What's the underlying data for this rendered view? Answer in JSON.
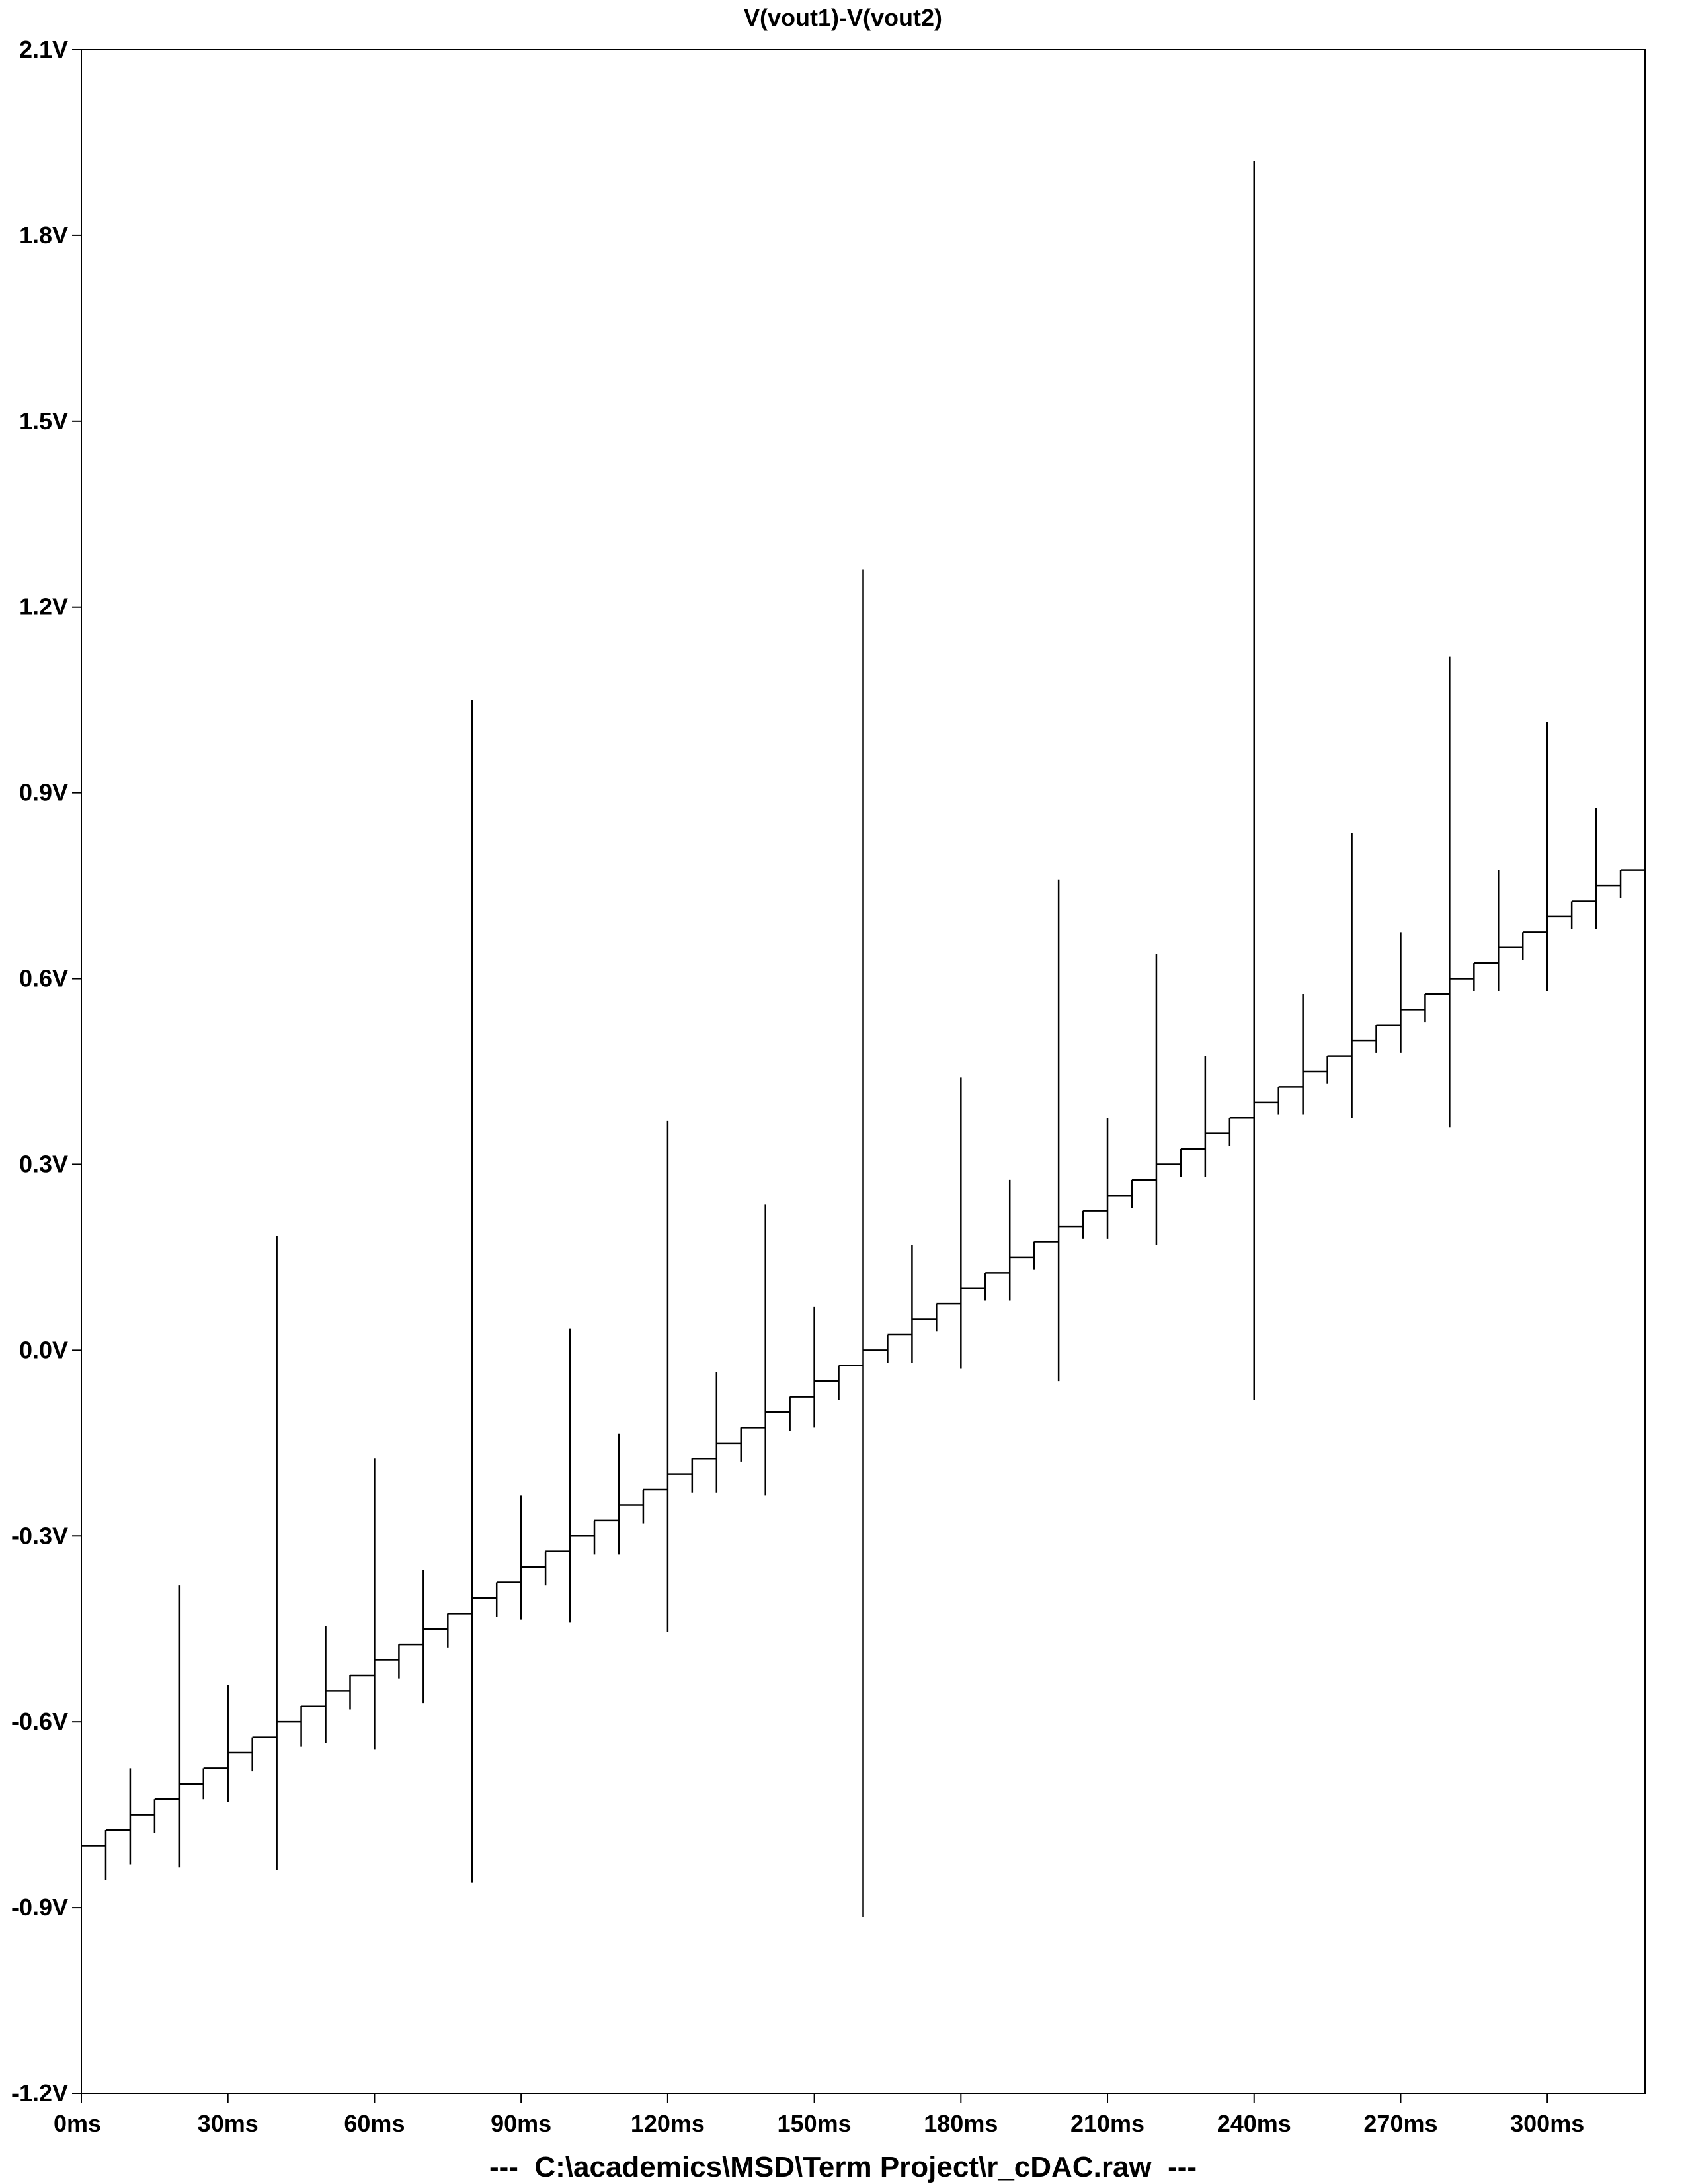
{
  "chart_data": {
    "type": "line",
    "title": "V(vout1)-V(vout2)",
    "footer": "---  C:\\academics\\MSD\\Term Project\\r_cDAC.raw  ---",
    "xlabel": "",
    "ylabel": "",
    "xlim": [
      0,
      320
    ],
    "ylim": [
      -1.2,
      2.1
    ],
    "x_unit": "ms",
    "y_unit": "V",
    "x_ticks": [
      0,
      30,
      60,
      90,
      120,
      150,
      180,
      210,
      240,
      270,
      300
    ],
    "x_tick_labels": [
      "0ms",
      "30ms",
      "60ms",
      "90ms",
      "120ms",
      "150ms",
      "180ms",
      "210ms",
      "240ms",
      "270ms",
      "300ms"
    ],
    "y_ticks": [
      2.1,
      1.8,
      1.5,
      1.2,
      0.9,
      0.6,
      0.3,
      0.0,
      -0.3,
      -0.6,
      -0.9,
      -1.2
    ],
    "y_tick_labels": [
      "2.1V",
      "1.8V",
      "1.5V",
      "1.2V",
      "0.9V",
      "0.6V",
      "0.3V",
      "0.0V",
      "-0.3V",
      "-0.6V",
      "-0.9V",
      "-1.2V"
    ],
    "grid": false,
    "line_color": "#000000",
    "step_period_ms": 5,
    "series": [
      {
        "levels": [
          -0.8,
          -0.775,
          -0.75,
          -0.725,
          -0.7,
          -0.675,
          -0.65,
          -0.625,
          -0.6,
          -0.575,
          -0.55,
          -0.525,
          -0.5,
          -0.475,
          -0.45,
          -0.425,
          -0.4,
          -0.375,
          -0.35,
          -0.325,
          -0.3,
          -0.275,
          -0.25,
          -0.225,
          -0.2,
          -0.175,
          -0.15,
          -0.125,
          -0.1,
          -0.075,
          -0.05,
          -0.025,
          0.0,
          0.025,
          0.05,
          0.075,
          0.1,
          0.125,
          0.15,
          0.175,
          0.2,
          0.225,
          0.25,
          0.275,
          0.3,
          0.325,
          0.35,
          0.375,
          0.4,
          0.425,
          0.45,
          0.475,
          0.5,
          0.525,
          0.55,
          0.575,
          0.6,
          0.625,
          0.65,
          0.675,
          0.7,
          0.725,
          0.75,
          0.775
        ],
        "glitches": [
          {
            "t": 5,
            "min": -0.855,
            "max": -0.775
          },
          {
            "t": 10,
            "min": -0.83,
            "max": -0.675
          },
          {
            "t": 15,
            "min": -0.78,
            "max": -0.725
          },
          {
            "t": 20,
            "min": -0.835,
            "max": -0.38
          },
          {
            "t": 25,
            "min": -0.725,
            "max": -0.675
          },
          {
            "t": 30,
            "min": -0.73,
            "max": -0.54
          },
          {
            "t": 35,
            "min": -0.68,
            "max": -0.625
          },
          {
            "t": 40,
            "min": -0.84,
            "max": 0.185
          },
          {
            "t": 45,
            "min": -0.64,
            "max": -0.575
          },
          {
            "t": 50,
            "min": -0.635,
            "max": -0.445
          },
          {
            "t": 55,
            "min": -0.58,
            "max": -0.525
          },
          {
            "t": 60,
            "min": -0.645,
            "max": -0.175
          },
          {
            "t": 65,
            "min": -0.53,
            "max": -0.475
          },
          {
            "t": 70,
            "min": -0.57,
            "max": -0.355
          },
          {
            "t": 75,
            "min": -0.48,
            "max": -0.425
          },
          {
            "t": 80,
            "min": -0.86,
            "max": 1.05
          },
          {
            "t": 85,
            "min": -0.43,
            "max": -0.375
          },
          {
            "t": 90,
            "min": -0.435,
            "max": -0.235
          },
          {
            "t": 95,
            "min": -0.38,
            "max": -0.325
          },
          {
            "t": 100,
            "min": -0.44,
            "max": 0.035
          },
          {
            "t": 105,
            "min": -0.33,
            "max": -0.275
          },
          {
            "t": 110,
            "min": -0.33,
            "max": -0.135
          },
          {
            "t": 115,
            "min": -0.28,
            "max": -0.225
          },
          {
            "t": 120,
            "min": -0.455,
            "max": 0.37
          },
          {
            "t": 125,
            "min": -0.23,
            "max": -0.175
          },
          {
            "t": 130,
            "min": -0.23,
            "max": -0.035
          },
          {
            "t": 135,
            "min": -0.18,
            "max": -0.125
          },
          {
            "t": 140,
            "min": -0.235,
            "max": 0.235
          },
          {
            "t": 145,
            "min": -0.13,
            "max": -0.075
          },
          {
            "t": 150,
            "min": -0.125,
            "max": 0.07
          },
          {
            "t": 155,
            "min": -0.08,
            "max": -0.025
          },
          {
            "t": 160,
            "min": -0.915,
            "max": 1.26
          },
          {
            "t": 165,
            "min": -0.02,
            "max": 0.025
          },
          {
            "t": 170,
            "min": -0.02,
            "max": 0.17
          },
          {
            "t": 175,
            "min": 0.03,
            "max": 0.075
          },
          {
            "t": 180,
            "min": -0.03,
            "max": 0.44
          },
          {
            "t": 185,
            "min": 0.08,
            "max": 0.125
          },
          {
            "t": 190,
            "min": 0.08,
            "max": 0.275
          },
          {
            "t": 195,
            "min": 0.13,
            "max": 0.175
          },
          {
            "t": 200,
            "min": -0.05,
            "max": 0.76
          },
          {
            "t": 205,
            "min": 0.18,
            "max": 0.225
          },
          {
            "t": 210,
            "min": 0.18,
            "max": 0.375
          },
          {
            "t": 215,
            "min": 0.23,
            "max": 0.275
          },
          {
            "t": 220,
            "min": 0.17,
            "max": 0.64
          },
          {
            "t": 225,
            "min": 0.28,
            "max": 0.325
          },
          {
            "t": 230,
            "min": 0.28,
            "max": 0.475
          },
          {
            "t": 235,
            "min": 0.33,
            "max": 0.375
          },
          {
            "t": 240,
            "min": -0.08,
            "max": 1.92
          },
          {
            "t": 245,
            "min": 0.38,
            "max": 0.425
          },
          {
            "t": 250,
            "min": 0.38,
            "max": 0.575
          },
          {
            "t": 255,
            "min": 0.43,
            "max": 0.475
          },
          {
            "t": 260,
            "min": 0.375,
            "max": 0.835
          },
          {
            "t": 265,
            "min": 0.48,
            "max": 0.525
          },
          {
            "t": 270,
            "min": 0.48,
            "max": 0.675
          },
          {
            "t": 275,
            "min": 0.53,
            "max": 0.575
          },
          {
            "t": 280,
            "min": 0.36,
            "max": 1.12
          },
          {
            "t": 285,
            "min": 0.58,
            "max": 0.625
          },
          {
            "t": 290,
            "min": 0.58,
            "max": 0.775
          },
          {
            "t": 295,
            "min": 0.63,
            "max": 0.675
          },
          {
            "t": 300,
            "min": 0.58,
            "max": 1.015
          },
          {
            "t": 305,
            "min": 0.68,
            "max": 0.725
          },
          {
            "t": 310,
            "min": 0.68,
            "max": 0.875
          },
          {
            "t": 315,
            "min": 0.73,
            "max": 0.775
          }
        ],
        "end": {
          "t": 320,
          "v": 0.8
        }
      }
    ]
  }
}
